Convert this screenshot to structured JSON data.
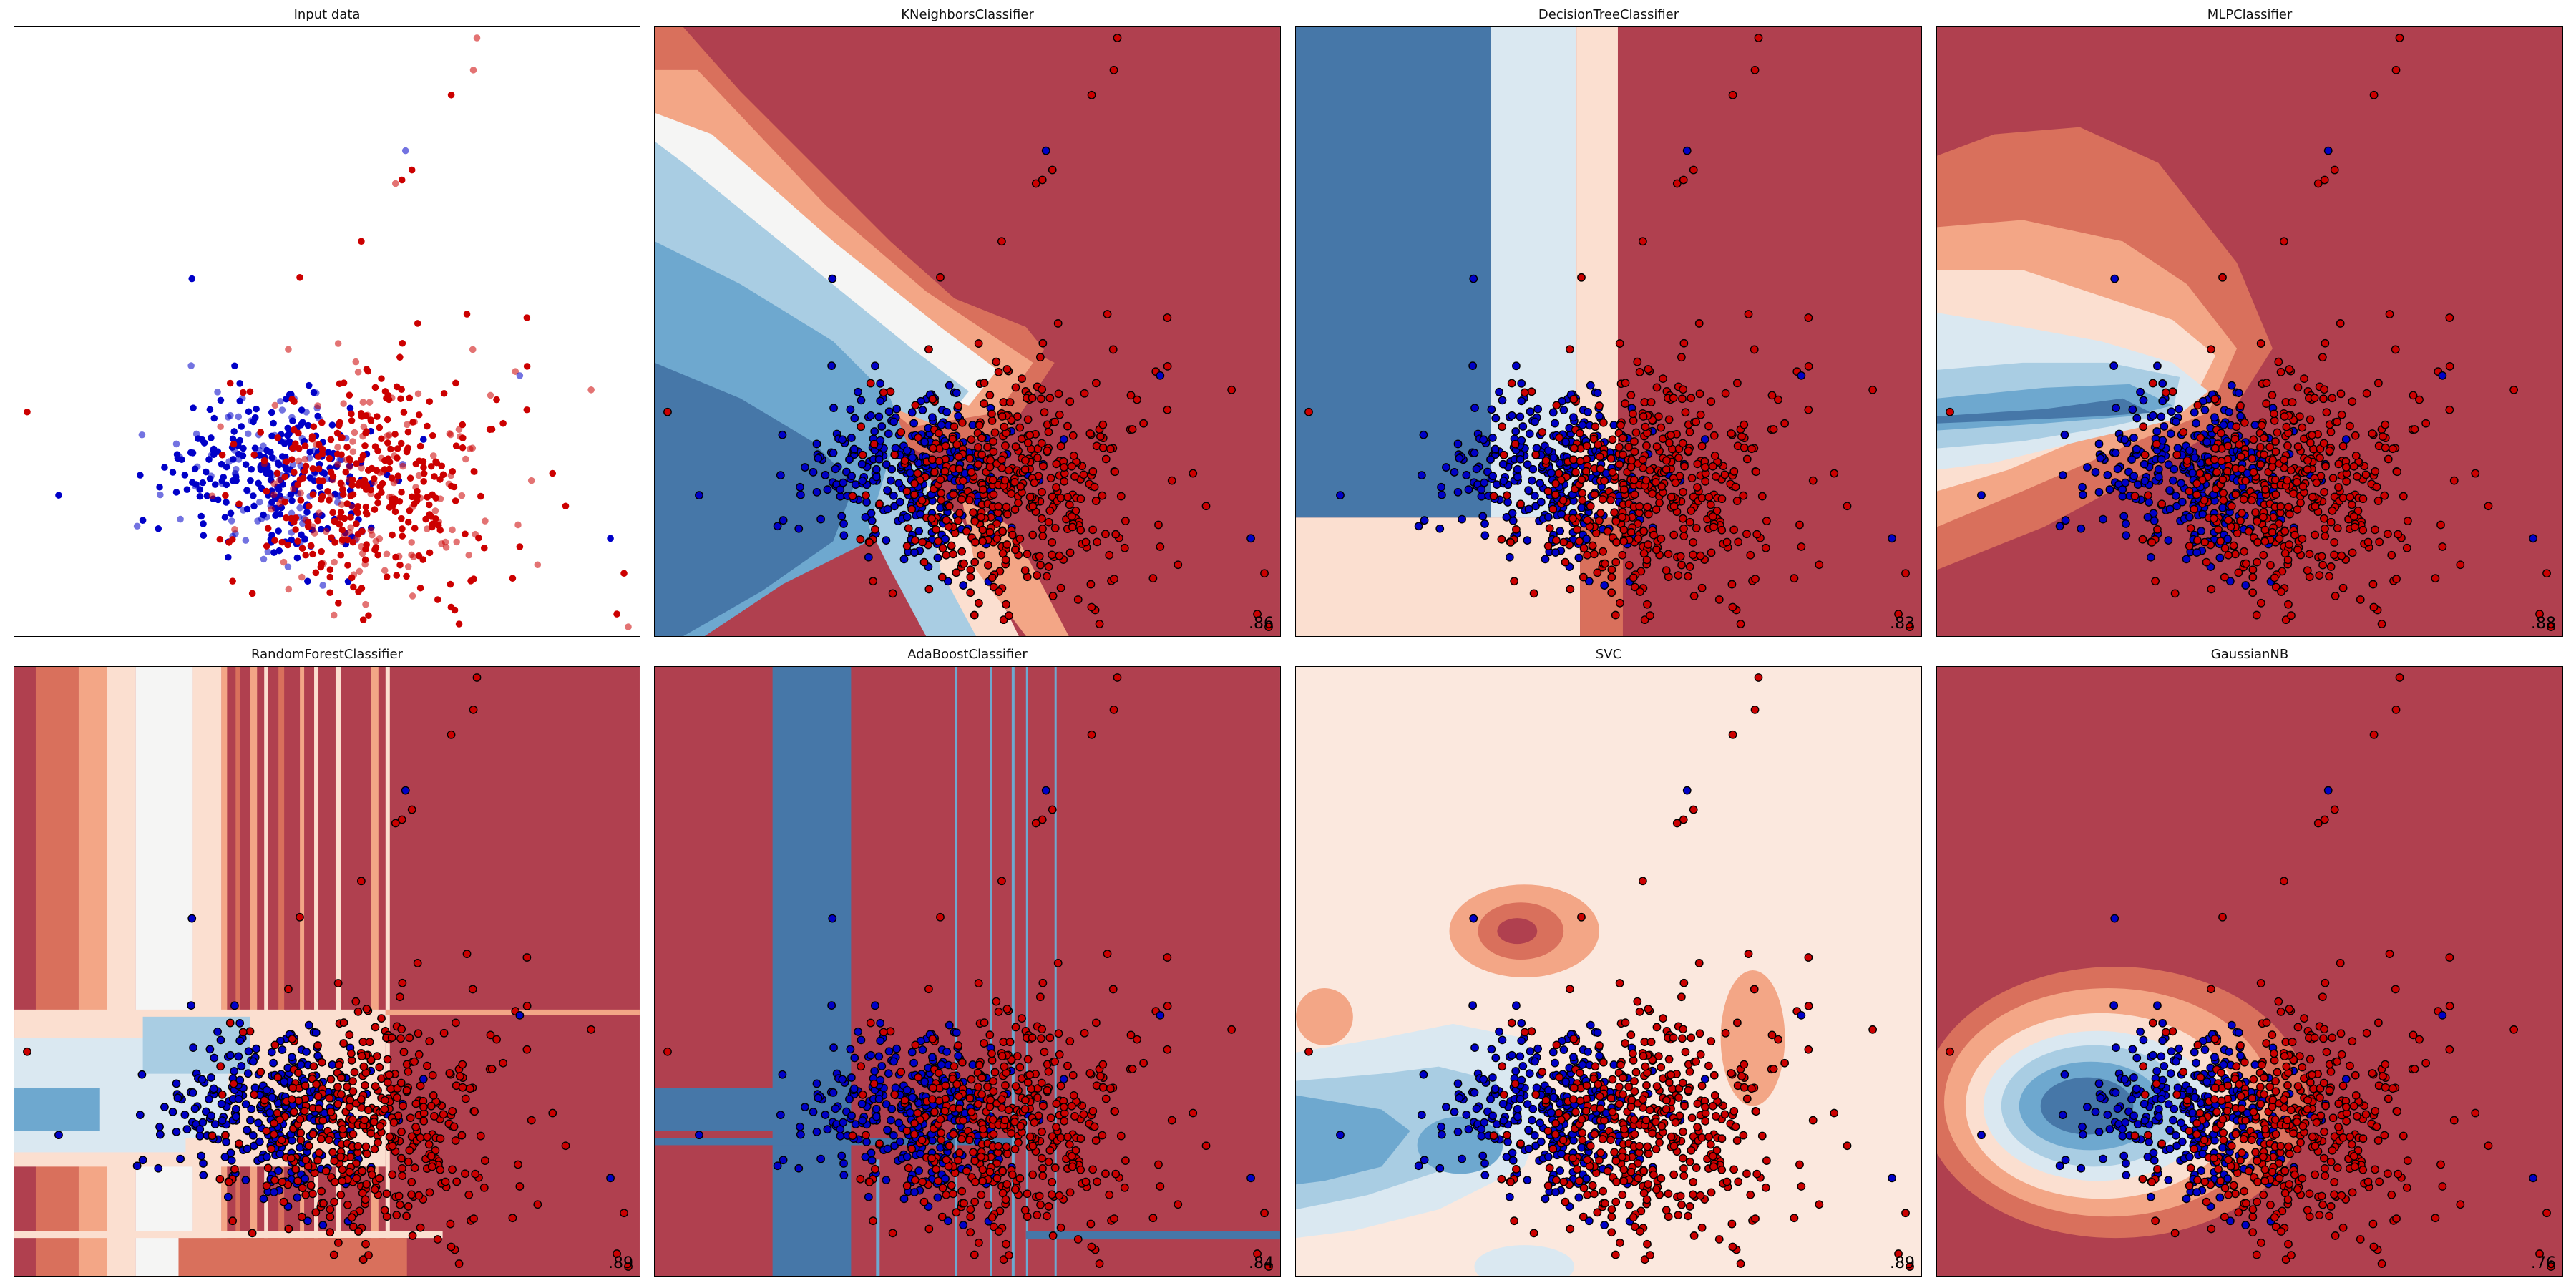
{
  "colors": {
    "class0": "#0000c8",
    "class1": "#cc0000",
    "rdbu": [
      "#67001f",
      "#b2182b",
      "#d6604d",
      "#f4a582",
      "#fddbc7",
      "#f7f7f7",
      "#d1e5f0",
      "#92c5de",
      "#4393c3",
      "#2166ac",
      "#053061"
    ]
  },
  "chart_data": [
    {
      "type": "scatter",
      "title": "Input data",
      "score": "",
      "background": "input"
    },
    {
      "type": "scatter",
      "title": "KNeighborsClassifier",
      "score": ".86",
      "background": "knn"
    },
    {
      "type": "scatter",
      "title": "DecisionTreeClassifier",
      "score": ".83",
      "background": "tree"
    },
    {
      "type": "scatter",
      "title": "MLPClassifier",
      "score": ".88",
      "background": "mlp"
    },
    {
      "type": "scatter",
      "title": "RandomForestClassifier",
      "score": ".89",
      "background": "forest"
    },
    {
      "type": "scatter",
      "title": "AdaBoostClassifier",
      "score": ".84",
      "background": "ada"
    },
    {
      "type": "scatter",
      "title": "SVC",
      "score": ".89",
      "background": "svc"
    },
    {
      "type": "scatter",
      "title": "GaussianNB",
      "score": ".76",
      "background": "gnb"
    }
  ]
}
